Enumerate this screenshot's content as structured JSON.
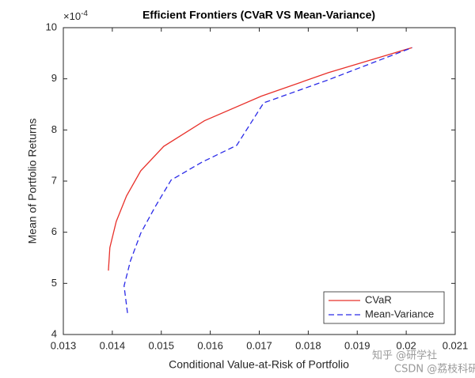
{
  "chart_data": {
    "type": "line",
    "title": "Efficient Frontiers (CVaR VS Mean-Variance)",
    "x_label": "Conditional Value-at-Risk of Portfolio",
    "y_label": "Mean of Portfolio Returns",
    "y_multiplier": {
      "base": "×10",
      "exponent": "-4"
    },
    "xlim": [
      0.013,
      0.021
    ],
    "xticks": [
      0.013,
      0.014,
      0.015,
      0.016,
      0.017,
      0.018,
      0.019,
      0.02,
      0.021
    ],
    "ylim": [
      4,
      10
    ],
    "yticks": [
      4,
      5,
      6,
      7,
      8,
      9,
      10
    ],
    "legend_position": "lower-right",
    "series": [
      {
        "name": "CVaR",
        "color": "#e8302a",
        "dash": "solid",
        "x": [
          0.01392,
          0.01395,
          0.01408,
          0.01429,
          0.01458,
          0.01505,
          0.01588,
          0.01704,
          0.01841,
          0.02012
        ],
        "values": [
          5.25,
          5.7,
          6.21,
          6.71,
          7.2,
          7.68,
          8.18,
          8.66,
          9.12,
          9.61
        ]
      },
      {
        "name": "Mean-Variance",
        "color": "#2a2ae8",
        "dash": "dashed",
        "x": [
          0.01431,
          0.01424,
          0.01437,
          0.01458,
          0.01487,
          0.0152,
          0.01583,
          0.01654,
          0.01709,
          0.01841,
          0.02012
        ],
        "values": [
          4.42,
          4.95,
          5.44,
          5.98,
          6.49,
          7.02,
          7.37,
          7.7,
          8.53,
          8.98,
          9.61
        ]
      }
    ]
  },
  "watermark": {
    "line1": "知乎 @研学社",
    "line2": "CSDN @荔枝科研社"
  }
}
